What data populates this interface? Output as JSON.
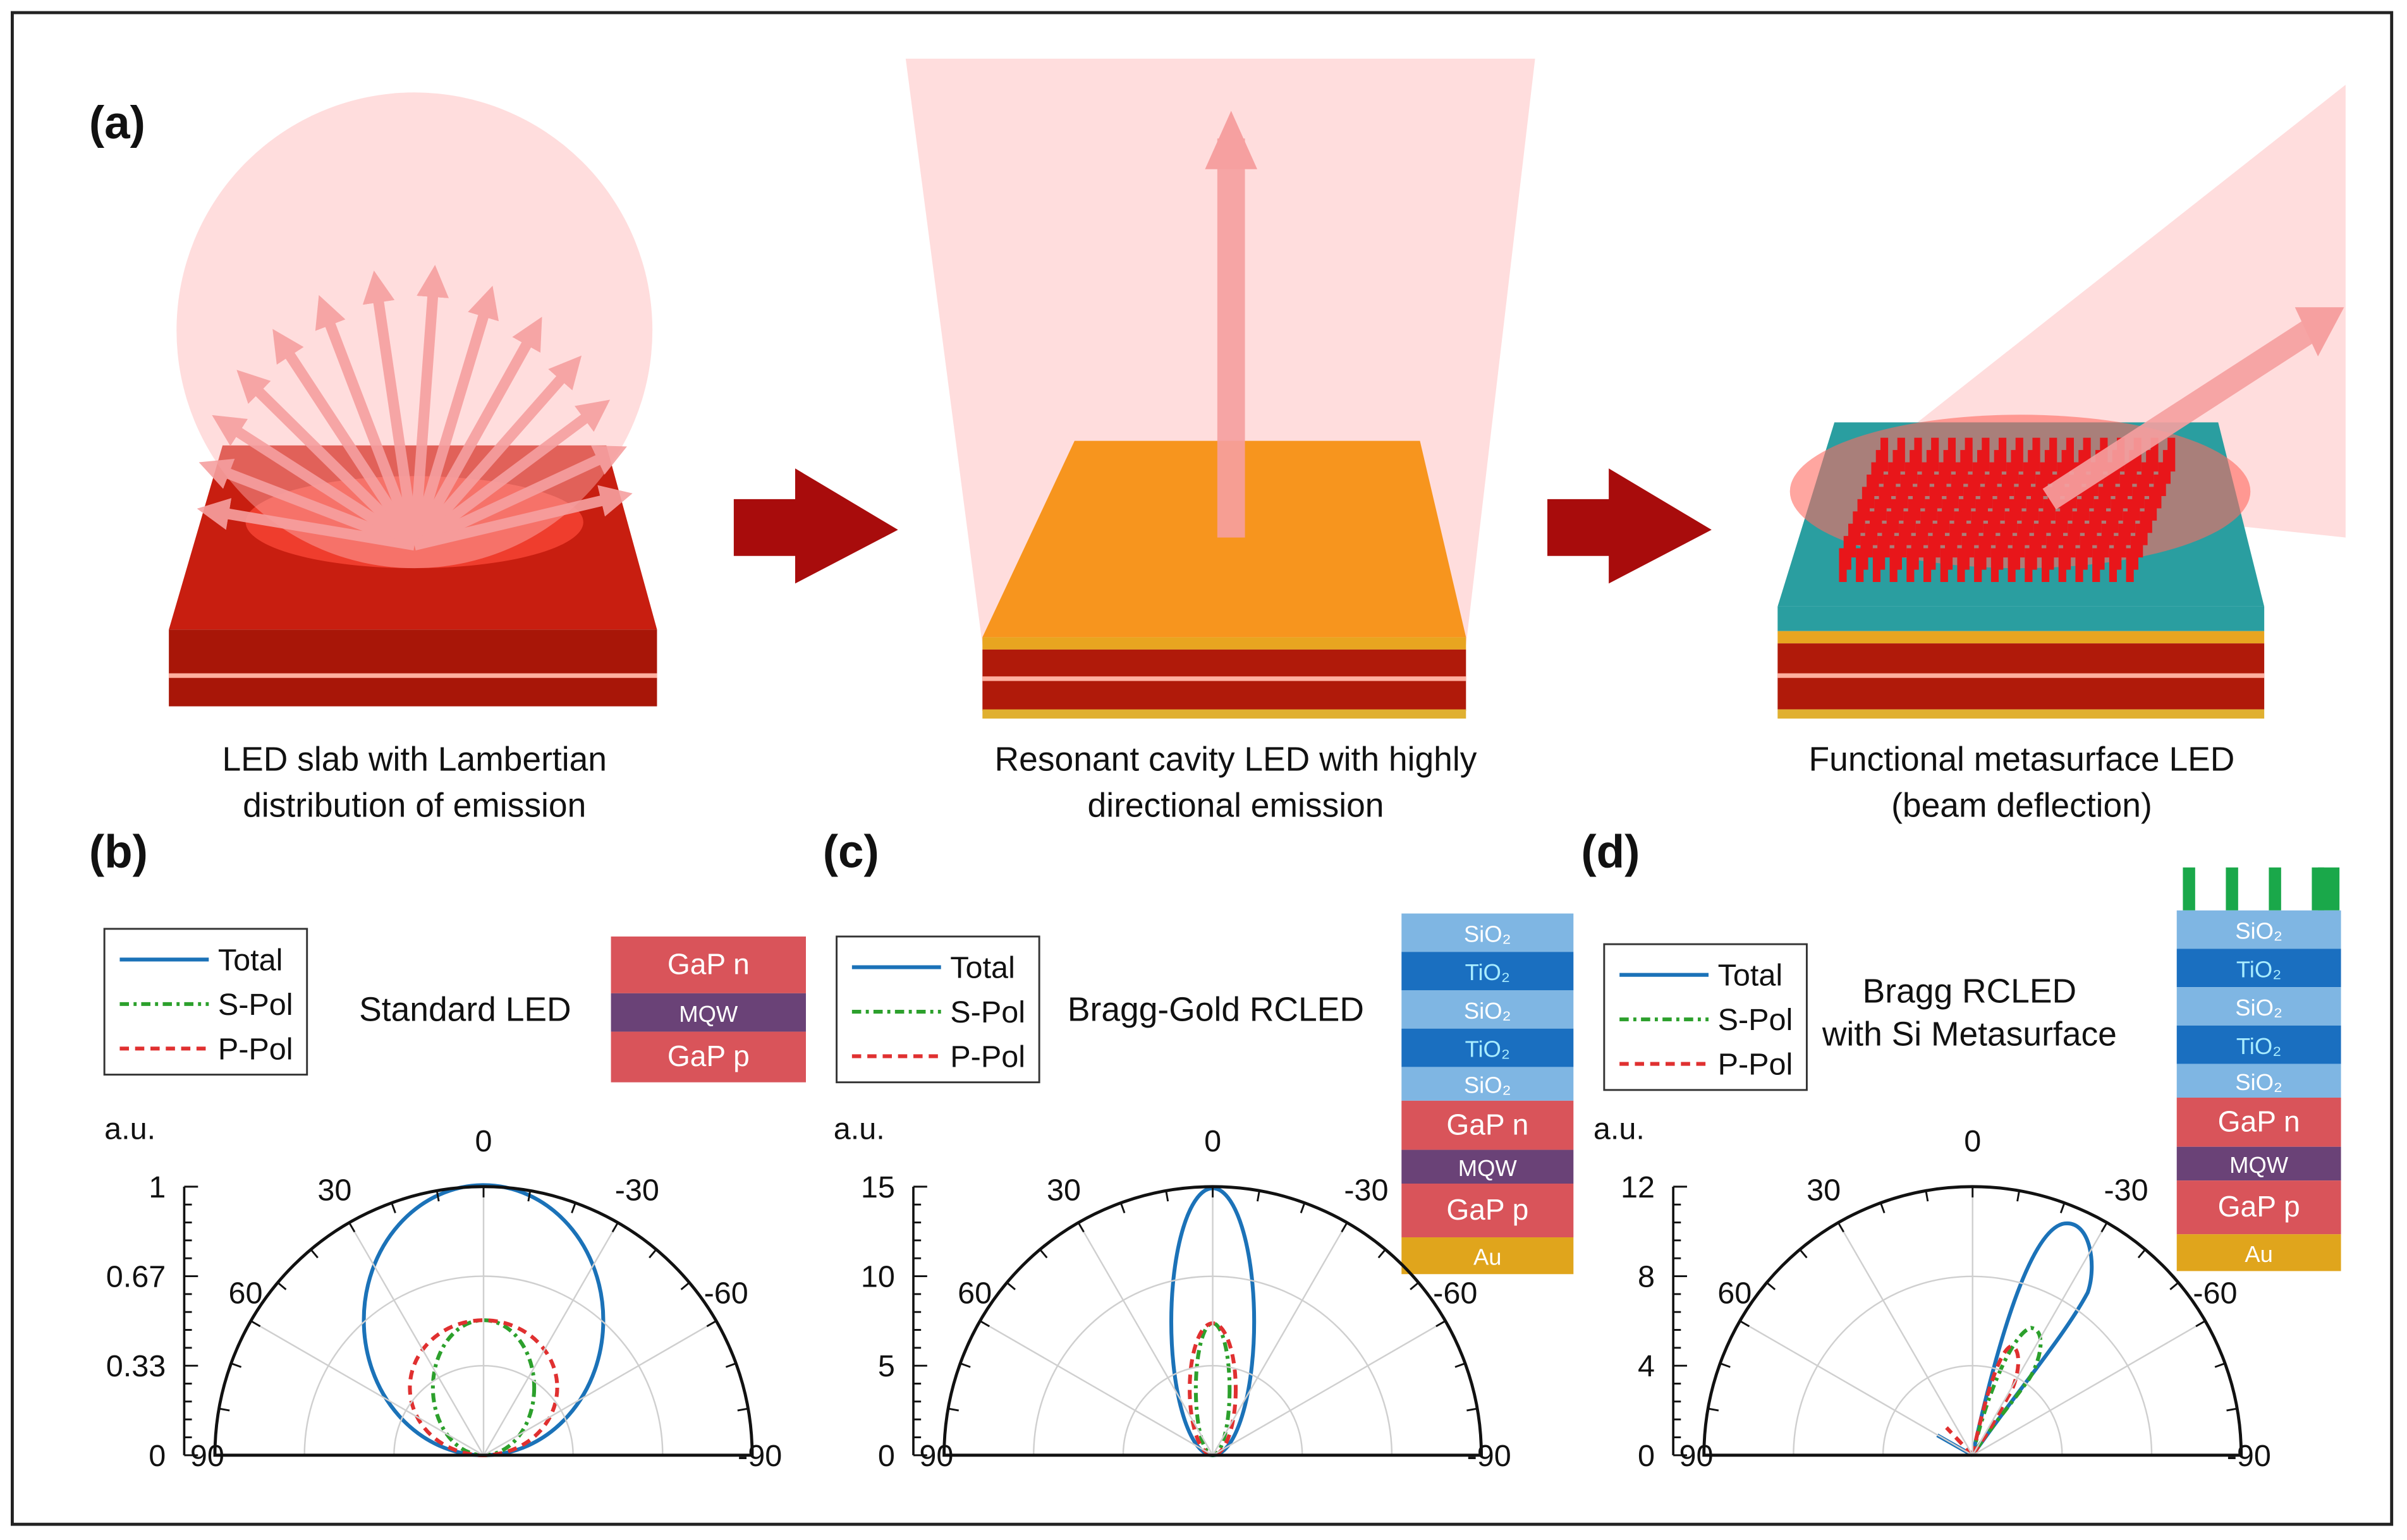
{
  "figure": {
    "panel_a": {
      "label": "(a)",
      "captions": [
        [
          "LED slab with Lambertian",
          "distribution of emission"
        ],
        [
          "Resonant cavity LED with highly",
          "directional emission"
        ],
        [
          "Functional metasurface LED",
          "(beam deflection)"
        ]
      ]
    },
    "panels": [
      {
        "label": "(b)",
        "title": [
          "Standard LED"
        ],
        "legend": [
          "Total",
          "S-Pol",
          "P-Pol"
        ],
        "unit": "a.u.",
        "radial_ticks": [
          "1",
          "0.67",
          "0.33",
          "0"
        ],
        "angle_labels": [
          "0",
          "30",
          "-30",
          "60",
          "-60",
          "90",
          "-90"
        ],
        "stack": [
          {
            "text": "GaP n",
            "color": "#d9545a"
          },
          {
            "text": "MQW",
            "color": "#6a4277"
          },
          {
            "text": "GaP p",
            "color": "#d9545a"
          }
        ]
      },
      {
        "label": "(c)",
        "title": [
          "Bragg-Gold RCLED"
        ],
        "legend": [
          "Total",
          "S-Pol",
          "P-Pol"
        ],
        "unit": "a.u.",
        "radial_ticks": [
          "15",
          "10",
          "5",
          "0"
        ],
        "angle_labels": [
          "0",
          "30",
          "-30",
          "60",
          "-60",
          "90",
          "-90"
        ],
        "stack": [
          {
            "text": "SiO₂",
            "color": "#7fb6e3"
          },
          {
            "text": "TiO₂",
            "color": "#1a6fc0"
          },
          {
            "text": "SiO₂",
            "color": "#7fb6e3"
          },
          {
            "text": "TiO₂",
            "color": "#1a6fc0"
          },
          {
            "text": "SiO₂",
            "color": "#7fb6e3"
          },
          {
            "text": "GaP n",
            "color": "#d9545a"
          },
          {
            "text": "MQW",
            "color": "#6a4277"
          },
          {
            "text": "GaP p",
            "color": "#d9545a"
          },
          {
            "text": "Au",
            "color": "#e0a51c"
          }
        ]
      },
      {
        "label": "(d)",
        "title": [
          "Bragg RCLED",
          "with Si Metasurface"
        ],
        "legend": [
          "Total",
          "S-Pol",
          "P-Pol"
        ],
        "unit": "a.u.",
        "radial_ticks": [
          "12",
          "8",
          "4",
          "0"
        ],
        "angle_labels": [
          "0",
          "30",
          "-30",
          "60",
          "-60",
          "90",
          "-90"
        ],
        "stack": [
          {
            "text": "SiO₂",
            "color": "#7fb6e3"
          },
          {
            "text": "TiO₂",
            "color": "#1a6fc0"
          },
          {
            "text": "SiO₂",
            "color": "#7fb6e3"
          },
          {
            "text": "TiO₂",
            "color": "#1a6fc0"
          },
          {
            "text": "SiO₂",
            "color": "#7fb6e3"
          },
          {
            "text": "GaP n",
            "color": "#d9545a"
          },
          {
            "text": "MQW",
            "color": "#6a4277"
          },
          {
            "text": "GaP p",
            "color": "#d9545a"
          },
          {
            "text": "Au",
            "color": "#e0a51c"
          }
        ]
      }
    ]
  }
}
